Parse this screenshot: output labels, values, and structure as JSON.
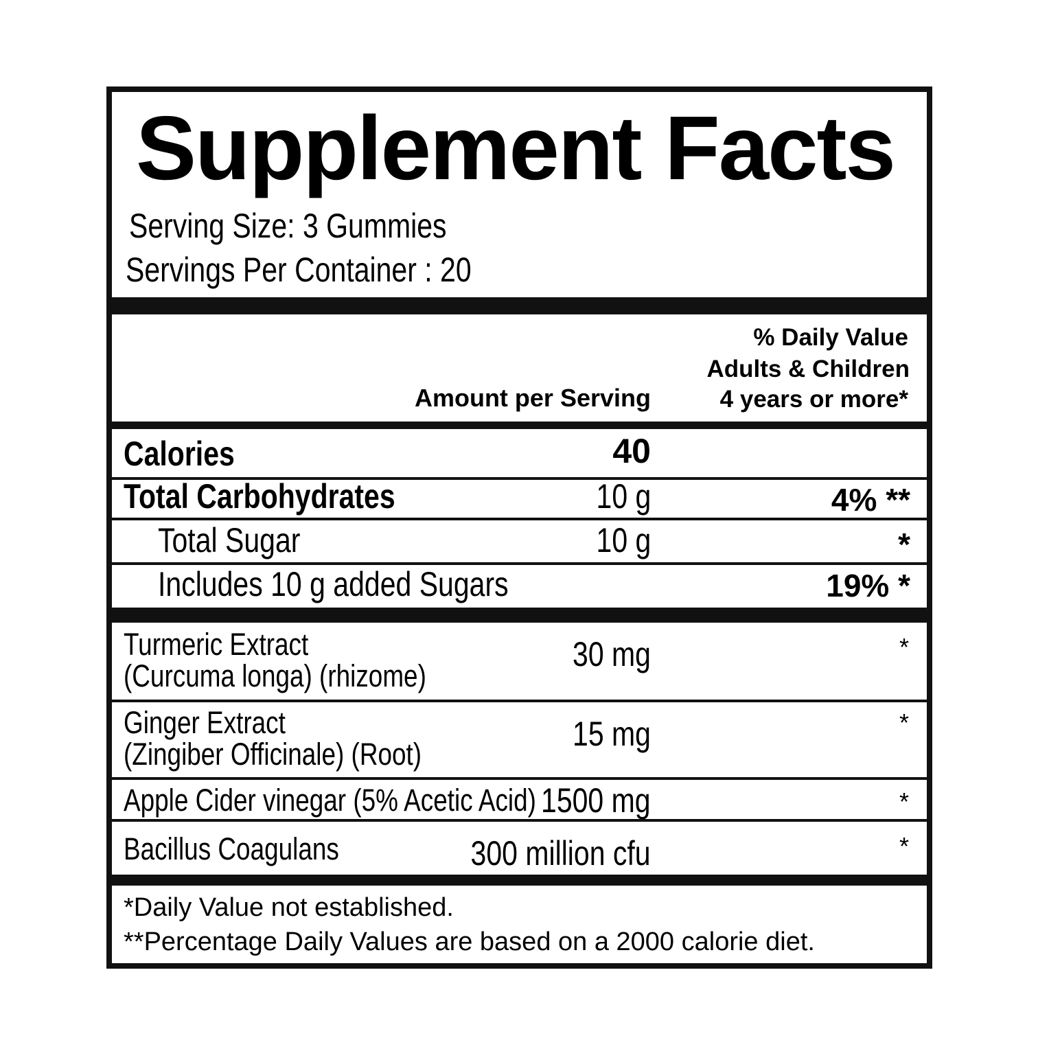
{
  "title": "Supplement Facts",
  "serving_size": "Serving Size: 3 Gummies",
  "servings_per_container": "Servings  Per Container : 20",
  "header": {
    "amount": "Amount per Serving",
    "dv_line1": "% Daily Value",
    "dv_line2": "Adults & Children",
    "dv_line3": "4 years or more*"
  },
  "rows": [
    {
      "name": "Calories",
      "amount": "40",
      "dv": ""
    },
    {
      "name": "Total Carbohydrates",
      "amount": "10 g",
      "dv": "4%",
      "mark": "**"
    },
    {
      "name": "Total Sugar",
      "amount": "10 g",
      "dv": "",
      "mark": "*"
    },
    {
      "name": "Includes 10 g added Sugars",
      "amount": "",
      "dv": "19%",
      "mark": "*"
    }
  ],
  "ingredients": [
    {
      "name": "Turmeric Extract",
      "sub": "(Curcuma longa) (rhizome)",
      "amount": "30 mg",
      "mark": "*"
    },
    {
      "name": "Ginger Extract",
      "sub": "(Zingiber Officinale) (Root)",
      "amount": "15 mg",
      "mark": "*"
    },
    {
      "name": "Apple Cider vinegar (5% Acetic Acid)",
      "amount": "1500 mg",
      "mark": "*"
    },
    {
      "name": "Bacillus Coagulans",
      "amount": "300 million cfu",
      "mark": "*"
    }
  ],
  "footnotes": [
    "*Daily Value not established.",
    "**Percentage Daily Values are based on a 2000 calorie diet."
  ]
}
